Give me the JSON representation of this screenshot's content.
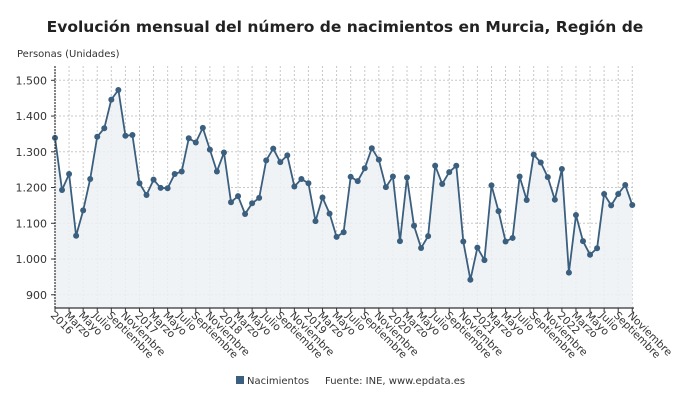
{
  "chart_data": {
    "type": "line",
    "title": "Evolución mensual del número de nacimientos en Murcia, Región de",
    "ylabel": "Personas (Unidades)",
    "xlabel": "",
    "ylim": [
      863,
      1540
    ],
    "yticks": [
      900,
      1000,
      1100,
      1200,
      1300,
      1400,
      1500
    ],
    "ytick_labels": [
      "900",
      "1.000",
      "1.100",
      "1.200",
      "1.300",
      "1.400",
      "1.500"
    ],
    "grid": true,
    "legend_position": "bottom",
    "x_tick_labels": [
      "2016",
      "Marzo",
      "Mayo",
      "Julio",
      "Septiembre",
      "Noviembre",
      "2017",
      "Marzo",
      "Mayo",
      "Julio",
      "Septiembre",
      "Noviembre",
      "2018",
      "Marzo",
      "Mayo",
      "Julio",
      "Septiembre",
      "Noviembre",
      "2019",
      "Marzo",
      "Mayo",
      "Julio",
      "Septiembre",
      "Noviembre",
      "2020",
      "Marzo",
      "Mayo",
      "Julio",
      "Septiembre",
      "Noviembre",
      "2021",
      "Marzo",
      "Mayo",
      "Julio",
      "Septiembre",
      "Noviembre",
      "2022",
      "Marzo",
      "Mayo",
      "Julio",
      "Septiembre",
      "Noviembre"
    ],
    "series": [
      {
        "name": "Nacimientos",
        "color": "#3b5f7e",
        "values": [
          1339,
          1193,
          1238,
          1065,
          1136,
          1224,
          1342,
          1366,
          1446,
          1473,
          1345,
          1347,
          1212,
          1179,
          1222,
          1199,
          1198,
          1238,
          1245,
          1338,
          1326,
          1367,
          1306,
          1245,
          1298,
          1159,
          1176,
          1126,
          1156,
          1171,
          1276,
          1309,
          1271,
          1290,
          1203,
          1224,
          1212,
          1106,
          1172,
          1127,
          1062,
          1075,
          1230,
          1218,
          1254,
          1310,
          1278,
          1201,
          1231,
          1050,
          1228,
          1093,
          1031,
          1064,
          1261,
          1210,
          1243,
          1261,
          1049,
          942,
          1032,
          997,
          1206,
          1134,
          1049,
          1059,
          1231,
          1165,
          1292,
          1270,
          1229,
          1166,
          1252,
          962,
          1123,
          1050,
          1012,
          1030,
          1182,
          1150,
          1182,
          1207,
          1151
        ]
      }
    ],
    "source": "Fuente: INE, www.epdata.es"
  }
}
